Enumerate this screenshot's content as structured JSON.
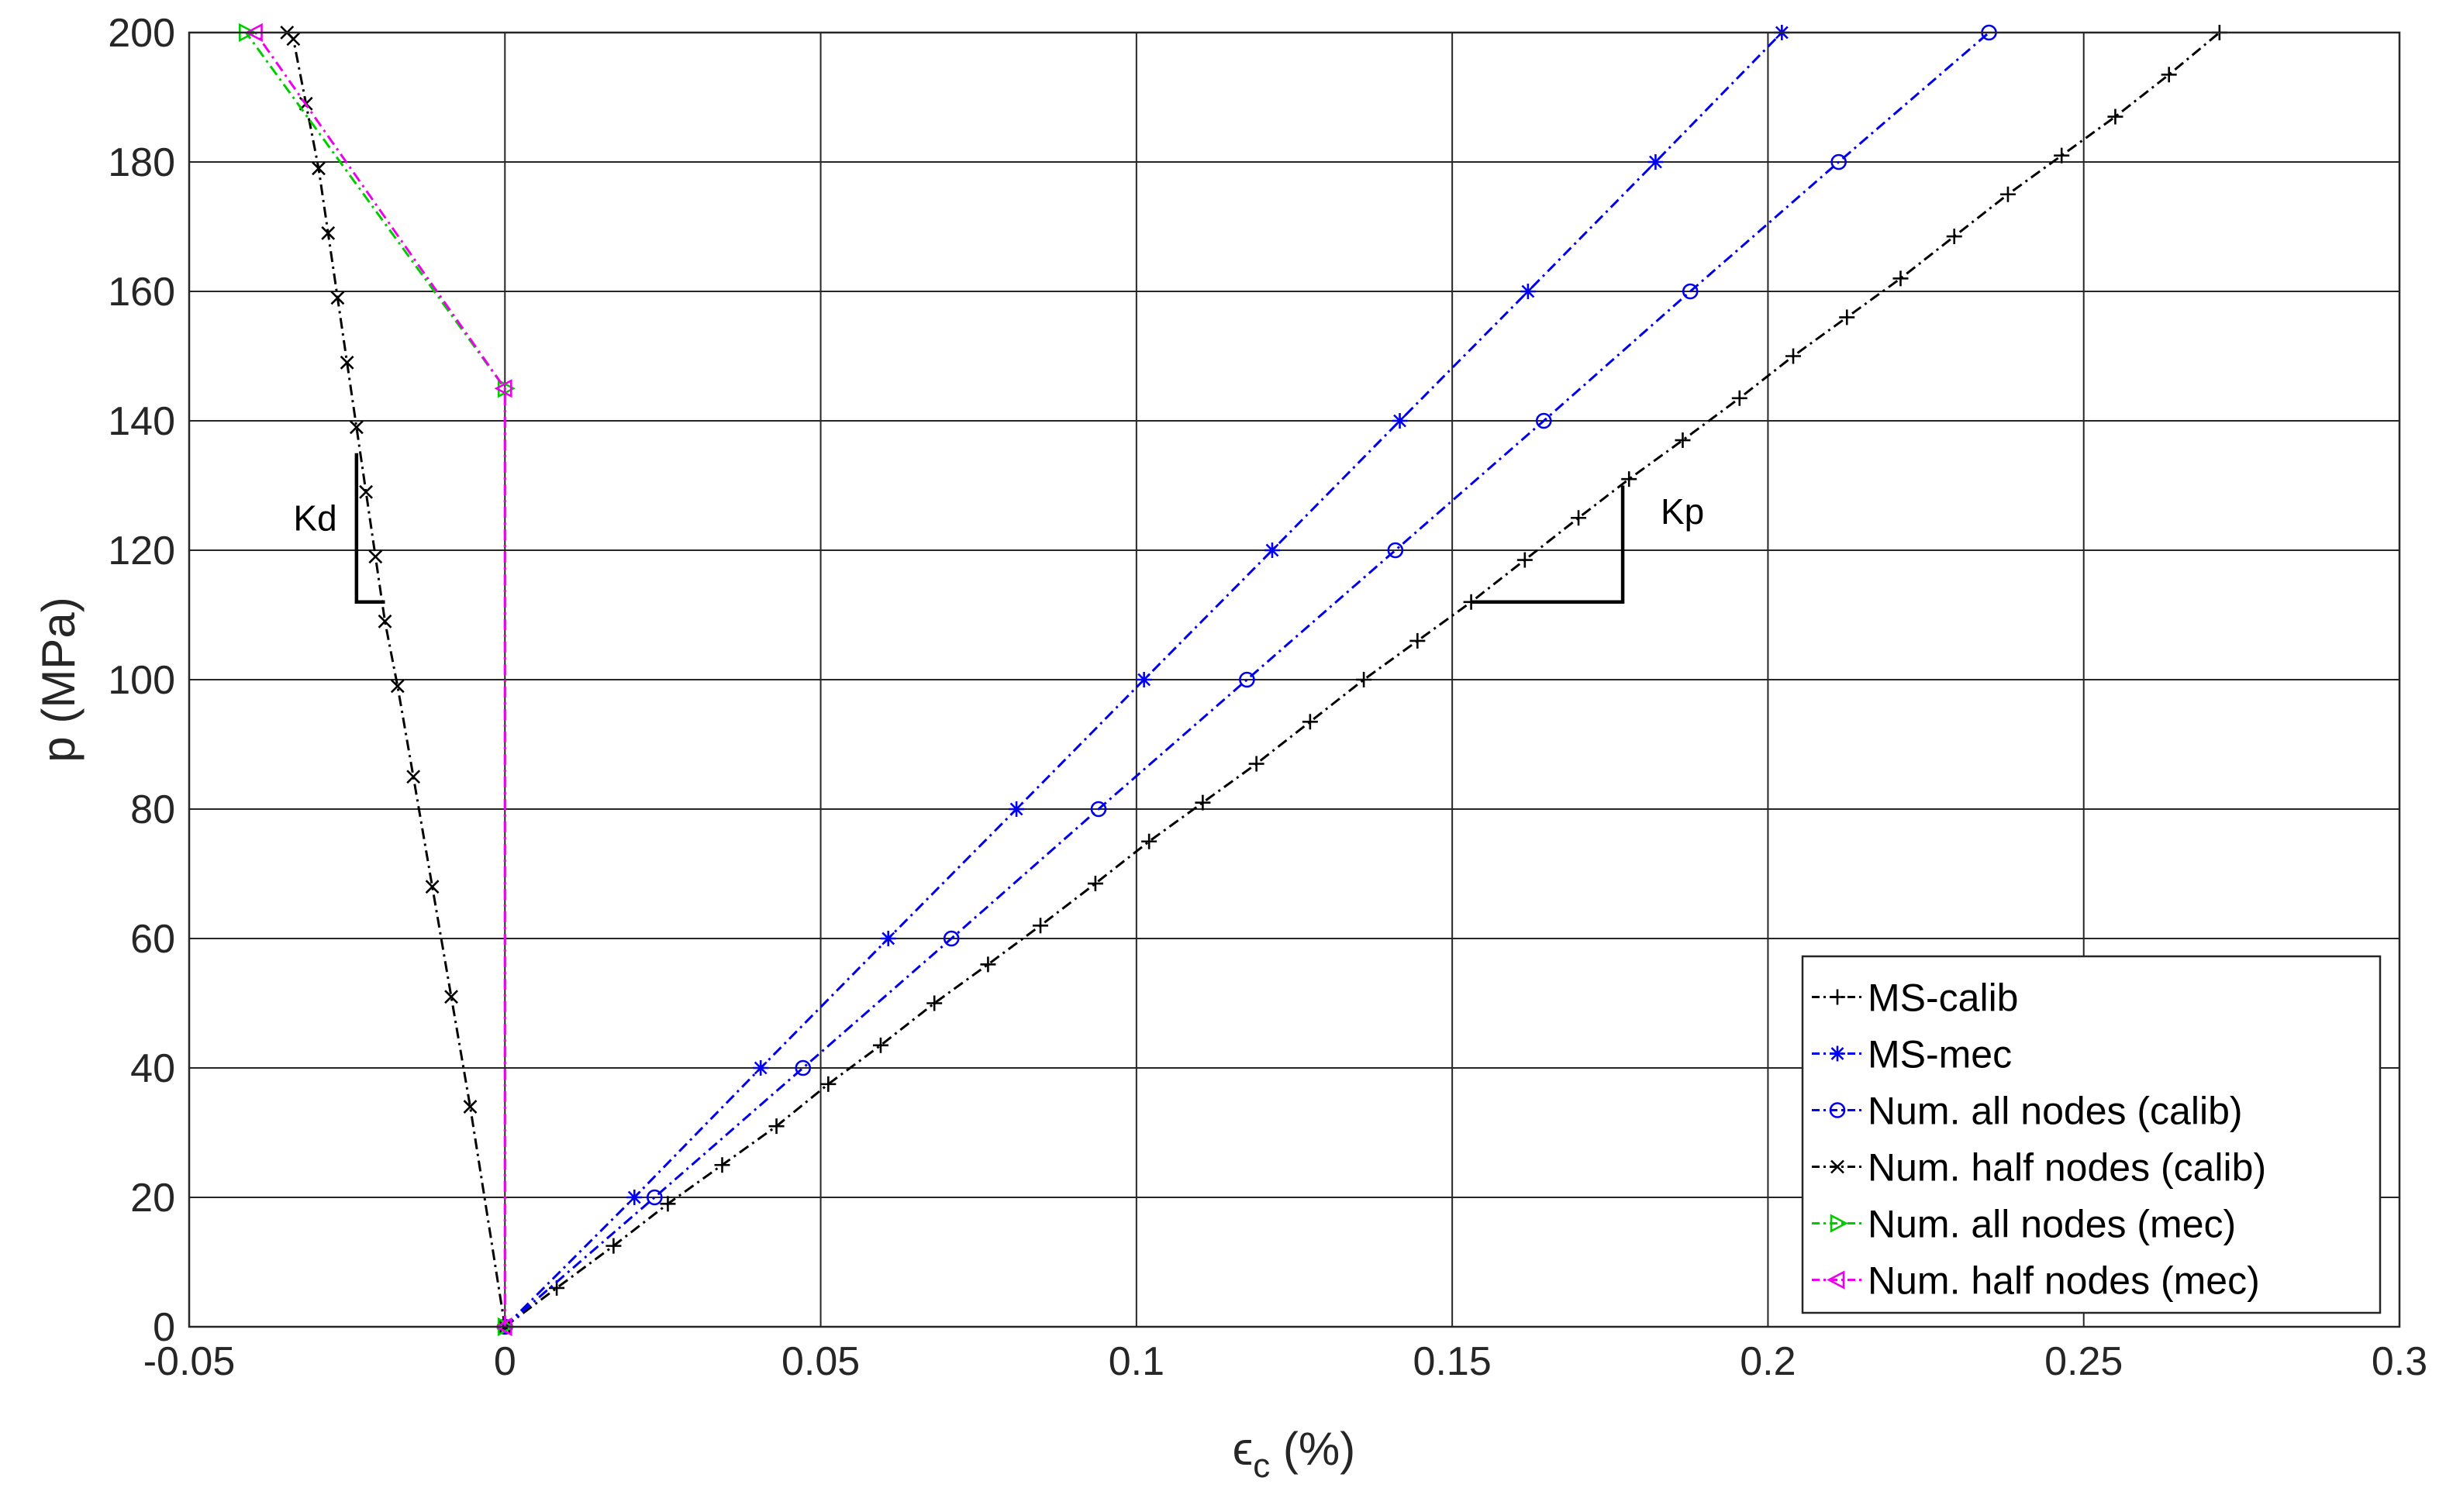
{
  "chart_data": {
    "type": "line",
    "xlabel": "ϵc (%)",
    "xlabel_main": "ϵ",
    "xlabel_sub": "c",
    "xlabel_unit": " (%)",
    "ylabel": "p (MPa)",
    "xlim": [
      -0.05,
      0.3
    ],
    "ylim": [
      0,
      200
    ],
    "xticks": [
      -0.05,
      0,
      0.05,
      0.1,
      0.15,
      0.2,
      0.25,
      0.3
    ],
    "xtick_labels": [
      "-0.05",
      "0",
      "0.05",
      "0.1",
      "0.15",
      "0.2",
      "0.25",
      "0.3"
    ],
    "yticks": [
      0,
      20,
      40,
      60,
      80,
      100,
      120,
      140,
      160,
      180,
      200
    ],
    "ytick_labels": [
      "0",
      "20",
      "40",
      "60",
      "80",
      "100",
      "120",
      "140",
      "160",
      "180",
      "200"
    ],
    "grid": true,
    "legend_position": "bottom-right",
    "series": [
      {
        "name": "MS-calib",
        "color": "#000000",
        "marker": "plus",
        "x": [
          0,
          0.0082,
          0.0172,
          0.0258,
          0.0344,
          0.043,
          0.0512,
          0.0595,
          0.068,
          0.0765,
          0.0848,
          0.0935,
          0.102,
          0.1105,
          0.119,
          0.1275,
          0.136,
          0.1445,
          0.153,
          0.1615,
          0.17,
          0.178,
          0.1865,
          0.1955,
          0.204,
          0.2125,
          0.221,
          0.2295,
          0.238,
          0.2465,
          0.255,
          0.2635,
          0.2715
        ],
        "y": [
          0,
          6,
          12.5,
          19,
          25,
          31,
          37.5,
          43.5,
          50,
          56,
          62,
          68.5,
          75,
          81,
          87,
          93.5,
          100,
          106,
          112,
          118.5,
          125,
          131,
          137,
          143.5,
          150,
          156,
          162,
          168.5,
          175,
          181,
          187,
          193.5,
          200
        ]
      },
      {
        "name": "MS-mec",
        "color": "#0000ee",
        "marker": "asterisk",
        "x": [
          0,
          0.0205,
          0.0405,
          0.0607,
          0.081,
          0.1012,
          0.1215,
          0.1417,
          0.162,
          0.1822,
          0.2022
        ],
        "y": [
          0,
          20,
          40,
          60,
          80,
          100,
          120,
          140,
          160,
          180,
          200
        ]
      },
      {
        "name": "Num. all nodes (calib)",
        "color": "#0000ee",
        "marker": "circle",
        "x": [
          0,
          0.0237,
          0.0472,
          0.0707,
          0.094,
          0.1175,
          0.141,
          0.1645,
          0.1877,
          0.2112,
          0.235
        ],
        "y": [
          0,
          20,
          40,
          60,
          80,
          100,
          120,
          140,
          160,
          180,
          200
        ]
      },
      {
        "name": "Num. half nodes (calib)",
        "color": "#000000",
        "marker": "x",
        "x": [
          0,
          -0.0055,
          -0.0085,
          -0.0115,
          -0.0145,
          -0.017,
          -0.019,
          -0.0205,
          -0.022,
          -0.0235,
          -0.025,
          -0.0265,
          -0.028,
          -0.0295,
          -0.0315,
          -0.0335,
          -0.0345
        ],
        "y": [
          0,
          34,
          51,
          68,
          85,
          99,
          109,
          119,
          129,
          139,
          149,
          159,
          169,
          179,
          189,
          199,
          200
        ]
      },
      {
        "name": "Num. all nodes (mec)",
        "color": "#00cc00",
        "marker": "triangle-right",
        "x": [
          0,
          0,
          -0.041
        ],
        "y": [
          0,
          145,
          200
        ]
      },
      {
        "name": "Num. half nodes (mec)",
        "color": "#ee00ee",
        "marker": "triangle-left",
        "x": [
          0,
          0,
          -0.0395
        ],
        "y": [
          0,
          145,
          200
        ]
      }
    ],
    "annotations": [
      {
        "text": "Kd",
        "label_at": [
          -0.0335,
          125
        ],
        "triangle": [
          [
            -0.0235,
            135
          ],
          [
            -0.0235,
            112
          ],
          [
            -0.019,
            112
          ]
        ]
      },
      {
        "text": "Kp",
        "label_at": [
          0.183,
          126
        ],
        "triangle": [
          [
            0.153,
            112
          ],
          [
            0.177,
            112
          ],
          [
            0.177,
            130
          ]
        ]
      }
    ]
  }
}
